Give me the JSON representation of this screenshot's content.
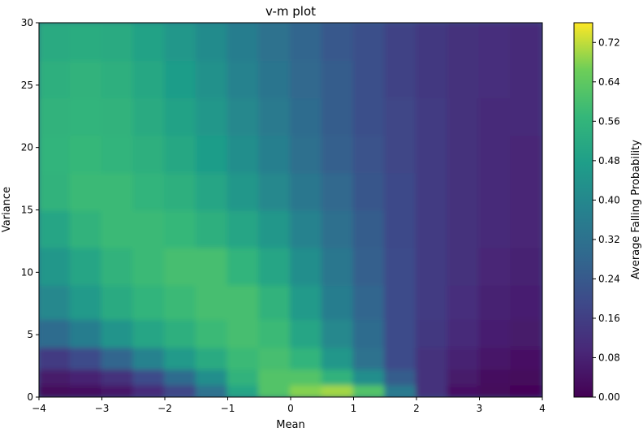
{
  "chart_data": {
    "type": "heatmap",
    "title": "v-m plot",
    "xlabel": "Mean",
    "ylabel": "Variance",
    "xlim": [
      -4,
      4
    ],
    "ylim": [
      0,
      30
    ],
    "x_ticks": [
      "−4",
      "−3",
      "−2",
      "−1",
      "0",
      "1",
      "2",
      "3",
      "4"
    ],
    "y_ticks": [
      "0",
      "5",
      "10",
      "15",
      "20",
      "25",
      "30"
    ],
    "colorbar": {
      "label": "Average Falling Probability",
      "range": [
        0.0,
        0.76
      ],
      "ticks": [
        "0.00",
        "0.08",
        "0.16",
        "0.24",
        "0.32",
        "0.40",
        "0.48",
        "0.56",
        "0.64",
        "0.72"
      ],
      "colormap": "viridis"
    },
    "grid": false,
    "mean_values": [
      -3.75,
      -3.25,
      -2.75,
      -2.25,
      -1.75,
      -1.25,
      -0.75,
      -0.25,
      0.25,
      0.75,
      1.25,
      1.75,
      2.25,
      2.75,
      3.25,
      3.75
    ],
    "variance_values": [
      0.5,
      1.5,
      3,
      5,
      7.5,
      10.5,
      13.5,
      16.5,
      19.5,
      22.5,
      25.5,
      28.5
    ],
    "probability": [
      [
        0.02,
        0.03,
        0.05,
        0.1,
        0.18,
        0.32,
        0.5,
        0.62,
        0.68,
        0.7,
        0.62,
        0.35,
        0.12,
        0.04,
        0.02,
        0.01
      ],
      [
        0.06,
        0.08,
        0.12,
        0.2,
        0.3,
        0.42,
        0.55,
        0.62,
        0.62,
        0.55,
        0.42,
        0.25,
        0.12,
        0.06,
        0.03,
        0.02
      ],
      [
        0.15,
        0.2,
        0.28,
        0.38,
        0.46,
        0.52,
        0.58,
        0.6,
        0.56,
        0.45,
        0.32,
        0.2,
        0.12,
        0.08,
        0.05,
        0.04
      ],
      [
        0.3,
        0.36,
        0.44,
        0.5,
        0.54,
        0.58,
        0.6,
        0.58,
        0.5,
        0.4,
        0.3,
        0.2,
        0.14,
        0.1,
        0.07,
        0.06
      ],
      [
        0.4,
        0.46,
        0.52,
        0.56,
        0.58,
        0.6,
        0.6,
        0.55,
        0.46,
        0.36,
        0.28,
        0.2,
        0.15,
        0.11,
        0.08,
        0.07
      ],
      [
        0.45,
        0.5,
        0.55,
        0.58,
        0.6,
        0.6,
        0.56,
        0.5,
        0.42,
        0.34,
        0.26,
        0.2,
        0.15,
        0.12,
        0.09,
        0.08
      ],
      [
        0.5,
        0.55,
        0.58,
        0.58,
        0.57,
        0.54,
        0.5,
        0.45,
        0.38,
        0.31,
        0.25,
        0.19,
        0.15,
        0.12,
        0.1,
        0.09
      ],
      [
        0.55,
        0.58,
        0.58,
        0.56,
        0.54,
        0.5,
        0.45,
        0.4,
        0.34,
        0.29,
        0.23,
        0.19,
        0.15,
        0.12,
        0.1,
        0.09
      ],
      [
        0.56,
        0.57,
        0.56,
        0.54,
        0.51,
        0.47,
        0.42,
        0.37,
        0.31,
        0.26,
        0.22,
        0.18,
        0.15,
        0.12,
        0.1,
        0.09
      ],
      [
        0.55,
        0.56,
        0.55,
        0.52,
        0.49,
        0.45,
        0.4,
        0.35,
        0.3,
        0.25,
        0.21,
        0.18,
        0.15,
        0.12,
        0.1,
        0.1
      ],
      [
        0.54,
        0.55,
        0.54,
        0.51,
        0.47,
        0.43,
        0.38,
        0.33,
        0.29,
        0.25,
        0.21,
        0.17,
        0.14,
        0.12,
        0.11,
        0.1
      ],
      [
        0.52,
        0.53,
        0.52,
        0.49,
        0.45,
        0.41,
        0.36,
        0.32,
        0.28,
        0.24,
        0.21,
        0.17,
        0.14,
        0.12,
        0.11,
        0.1
      ]
    ]
  }
}
